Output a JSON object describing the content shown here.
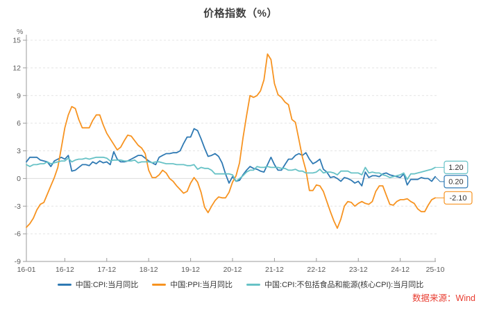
{
  "source": "数据来源：Wind",
  "colors": {
    "cpi_blue": "#2E79B3",
    "ppi_orange": "#F79320",
    "core_cpi_teal": "#67C2C6",
    "source_red": "#E83C30",
    "grid_dash": "#E4E4E4",
    "zero_line": "#DCDCDC",
    "axis": "#9B9B9B",
    "tick_text": "#595959",
    "title_text": "#3F3F3F"
  },
  "chart_data": {
    "type": "line",
    "title": "价格指数（%）",
    "ylabel": "%",
    "xlabel": "",
    "ylim": [
      -9,
      15
    ],
    "y_ticks": [
      -9,
      -6,
      -3,
      0,
      3,
      6,
      9,
      12,
      15
    ],
    "grid": "horizontal dashed, solid line at 0",
    "legend_position": "bottom",
    "x_tick_labels": [
      "16-01",
      "16-12",
      "17-12",
      "18-12",
      "19-12",
      "20-12",
      "21-12",
      "22-12",
      "23-12",
      "24-12",
      "25-10"
    ],
    "x_tick_month_index": [
      0,
      11,
      23,
      35,
      47,
      59,
      71,
      83,
      95,
      107,
      117
    ],
    "series": [
      {
        "id": "cpi",
        "name": "中国:CPI:当月同比",
        "color": "#2E79B3",
        "end_label": "0.20",
        "values": [
          1.8,
          2.3,
          2.3,
          2.3,
          2.0,
          1.9,
          1.8,
          1.3,
          1.9,
          2.1,
          2.3,
          2.1,
          2.5,
          0.8,
          0.9,
          1.2,
          1.5,
          1.5,
          1.4,
          1.8,
          1.6,
          1.9,
          1.7,
          1.8,
          1.5,
          2.9,
          2.1,
          1.8,
          1.8,
          1.9,
          2.1,
          2.3,
          2.5,
          2.5,
          2.2,
          1.9,
          1.7,
          1.5,
          2.3,
          2.5,
          2.7,
          2.7,
          2.8,
          2.8,
          3.0,
          3.8,
          4.5,
          4.5,
          5.4,
          5.2,
          4.3,
          3.3,
          2.4,
          2.5,
          2.7,
          2.4,
          1.7,
          0.5,
          -0.5,
          0.2,
          -0.3,
          -0.2,
          0.4,
          0.9,
          1.3,
          1.1,
          1.0,
          0.8,
          0.7,
          1.5,
          2.3,
          1.5,
          0.9,
          0.9,
          1.5,
          2.1,
          2.1,
          2.5,
          2.7,
          2.5,
          2.8,
          2.1,
          1.6,
          1.8,
          2.1,
          1.0,
          0.7,
          0.1,
          0.2,
          0.0,
          -0.3,
          0.1,
          0.0,
          -0.2,
          -0.5,
          -0.3,
          -0.8,
          0.7,
          0.1,
          0.3,
          0.3,
          0.2,
          0.5,
          0.6,
          0.4,
          0.3,
          0.2,
          0.1,
          0.5,
          -0.7,
          -0.1,
          -0.1,
          -0.1,
          0.1,
          0.0,
          0.0,
          -0.3,
          0.2
        ]
      },
      {
        "id": "ppi",
        "name": "中国:PPI:当月同比",
        "color": "#F79320",
        "end_label": "-2.10",
        "values": [
          -5.3,
          -4.9,
          -4.3,
          -3.4,
          -2.8,
          -2.6,
          -1.7,
          -0.8,
          0.1,
          1.2,
          3.3,
          5.5,
          6.9,
          7.8,
          7.6,
          6.4,
          5.5,
          5.5,
          5.5,
          6.3,
          6.9,
          6.9,
          5.8,
          4.9,
          4.3,
          3.7,
          3.1,
          3.4,
          4.1,
          4.7,
          4.6,
          4.1,
          3.6,
          3.3,
          2.7,
          0.9,
          0.1,
          0.1,
          0.4,
          0.9,
          0.6,
          0.0,
          -0.3,
          -0.8,
          -1.2,
          -1.6,
          -1.4,
          -0.5,
          0.1,
          -0.4,
          -1.5,
          -3.1,
          -3.7,
          -3.0,
          -2.4,
          -2.0,
          -2.1,
          -2.1,
          -1.5,
          -0.4,
          0.3,
          1.7,
          4.4,
          6.8,
          9.0,
          8.8,
          9.0,
          9.5,
          10.7,
          13.5,
          12.9,
          10.3,
          9.1,
          8.8,
          8.3,
          8.0,
          6.4,
          6.1,
          4.2,
          2.3,
          0.9,
          -1.3,
          -1.3,
          -0.7,
          -0.8,
          -1.4,
          -2.5,
          -3.6,
          -4.6,
          -5.4,
          -4.4,
          -3.0,
          -2.5,
          -2.6,
          -3.0,
          -2.7,
          -2.5,
          -2.7,
          -2.8,
          -2.5,
          -1.4,
          -0.8,
          -0.8,
          -1.8,
          -2.8,
          -2.9,
          -2.5,
          -2.3,
          -2.3,
          -2.2,
          -2.5,
          -2.7,
          -3.3,
          -3.6,
          -3.6,
          -2.9,
          -2.3,
          -2.1
        ]
      },
      {
        "id": "core-cpi",
        "name": "中国:CPI:不包括食品和能源(核心CPI):当月同比",
        "color": "#67C2C6",
        "end_label": "1.20",
        "values": [
          1.5,
          1.3,
          1.5,
          1.5,
          1.6,
          1.6,
          1.8,
          1.6,
          1.7,
          1.8,
          1.9,
          1.9,
          2.2,
          1.8,
          2.0,
          2.1,
          2.1,
          2.2,
          2.1,
          2.2,
          2.3,
          2.3,
          2.3,
          2.2,
          1.9,
          2.0,
          2.0,
          2.0,
          1.9,
          1.9,
          1.9,
          2.0,
          1.7,
          1.8,
          1.8,
          1.8,
          1.7,
          1.8,
          1.8,
          1.7,
          1.6,
          1.6,
          1.6,
          1.5,
          1.5,
          1.5,
          1.4,
          1.4,
          1.5,
          1.0,
          1.2,
          1.1,
          1.1,
          0.9,
          0.5,
          0.5,
          0.5,
          0.5,
          0.5,
          0.4,
          -0.3,
          0.0,
          0.3,
          0.7,
          0.9,
          0.9,
          1.3,
          1.2,
          1.2,
          1.3,
          1.2,
          1.2,
          1.2,
          1.1,
          1.1,
          0.9,
          0.9,
          1.0,
          0.8,
          0.8,
          0.6,
          0.6,
          0.6,
          0.7,
          1.0,
          0.6,
          0.7,
          0.7,
          0.6,
          0.4,
          0.8,
          0.8,
          0.8,
          0.6,
          0.6,
          0.6,
          0.4,
          1.2,
          0.6,
          0.7,
          0.6,
          0.6,
          0.4,
          0.3,
          0.1,
          0.2,
          0.3,
          0.4,
          0.6,
          -0.1,
          0.5,
          0.5,
          0.6,
          0.7,
          0.8,
          0.9,
          1.0,
          1.2
        ]
      }
    ]
  }
}
